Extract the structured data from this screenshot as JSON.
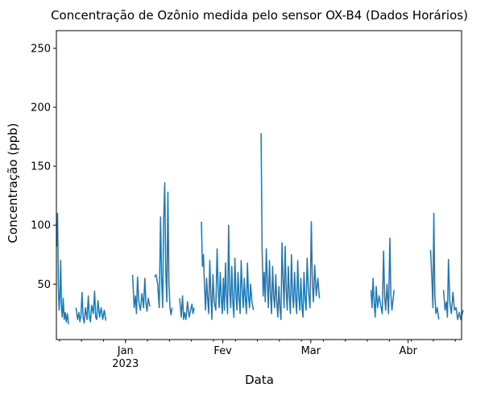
{
  "chart_data": {
    "type": "line",
    "title": "Concentração de Ozônio medida pelo sensor OX-B4 (Dados Horários)",
    "xlabel": "Data",
    "ylabel": "Concentração (ppb)",
    "color": "#1f77b4",
    "xlim": [
      "2022-12-10",
      "2023-04-18"
    ],
    "ylim": [
      3,
      265
    ],
    "y_ticks": [
      50,
      100,
      150,
      200,
      250
    ],
    "x_ticks": [
      {
        "date": "2023-01-01",
        "label": "Jan",
        "sublabel": "2023"
      },
      {
        "date": "2023-02-01",
        "label": "Fev",
        "sublabel": ""
      },
      {
        "date": "2023-03-01",
        "label": "Mar",
        "sublabel": ""
      },
      {
        "date": "2023-04-01",
        "label": "Abr",
        "sublabel": ""
      }
    ],
    "grid": false,
    "legend": "none",
    "series": [
      {
        "segments": [
          [
            [
              "2022-12-10",
              82
            ],
            [
              "2022-12-10",
              110
            ],
            [
              "2022-12-10",
              48
            ],
            [
              "2022-12-10",
              28
            ],
            [
              "2022-12-11",
              40
            ],
            [
              "2022-12-11",
              70
            ],
            [
              "2022-12-11",
              30
            ],
            [
              "2022-12-11",
              22
            ],
            [
              "2022-12-12",
              38
            ],
            [
              "2022-12-12",
              20
            ],
            [
              "2022-12-12",
              26
            ],
            [
              "2022-12-13",
              18
            ],
            [
              "2022-12-13",
              25
            ],
            [
              "2022-12-13",
              16
            ]
          ],
          [
            [
              "2022-12-16",
              30
            ],
            [
              "2022-12-16",
              20
            ],
            [
              "2022-12-17",
              26
            ],
            [
              "2022-12-17",
              18
            ],
            [
              "2022-12-17",
              24
            ],
            [
              "2022-12-18",
              43
            ],
            [
              "2022-12-18",
              22
            ],
            [
              "2022-12-18",
              17
            ],
            [
              "2022-12-19",
              30
            ],
            [
              "2022-12-19",
              20
            ],
            [
              "2022-12-20",
              40
            ],
            [
              "2022-12-20",
              22
            ],
            [
              "2022-12-20",
              18
            ],
            [
              "2022-12-21",
              32
            ],
            [
              "2022-12-21",
              25
            ],
            [
              "2022-12-22",
              44
            ],
            [
              "2022-12-22",
              22
            ],
            [
              "2022-12-22",
              20
            ],
            [
              "2022-12-23",
              36
            ],
            [
              "2022-12-23",
              22
            ],
            [
              "2022-12-24",
              30
            ],
            [
              "2022-12-24",
              20
            ],
            [
              "2022-12-25",
              28
            ],
            [
              "2022-12-25",
              19
            ]
          ],
          [
            [
              "2023-01-03",
              58
            ],
            [
              "2023-01-03",
              30
            ],
            [
              "2023-01-04",
              40
            ],
            [
              "2023-01-04",
              25
            ],
            [
              "2023-01-04",
              56
            ],
            [
              "2023-01-05",
              35
            ],
            [
              "2023-01-05",
              28
            ],
            [
              "2023-01-06",
              42
            ],
            [
              "2023-01-06",
              30
            ],
            [
              "2023-01-07",
              55
            ],
            [
              "2023-01-07",
              34
            ],
            [
              "2023-01-07",
              27
            ],
            [
              "2023-01-08",
              38
            ],
            [
              "2023-01-08",
              31
            ]
          ],
          [
            [
              "2023-01-10",
              56
            ],
            [
              "2023-01-10",
              58
            ],
            [
              "2023-01-11",
              50
            ],
            [
              "2023-01-11",
              30
            ],
            [
              "2023-01-12",
              107
            ],
            [
              "2023-01-12",
              55
            ],
            [
              "2023-01-12",
              30
            ],
            [
              "2023-01-13",
              105
            ],
            [
              "2023-01-13",
              136
            ],
            [
              "2023-01-13",
              60
            ],
            [
              "2023-01-14",
              35
            ],
            [
              "2023-01-14",
              128
            ],
            [
              "2023-01-14",
              50
            ],
            [
              "2023-01-15",
              30
            ],
            [
              "2023-01-15",
              24
            ],
            [
              "2023-01-15",
              30
            ]
          ],
          [
            [
              "2023-01-18",
              38
            ],
            [
              "2023-01-18",
              22
            ],
            [
              "2023-01-19",
              40
            ],
            [
              "2023-01-19",
              20
            ],
            [
              "2023-01-19",
              26
            ],
            [
              "2023-01-20",
              20
            ],
            [
              "2023-01-20",
              35
            ],
            [
              "2023-01-21",
              22
            ],
            [
              "2023-01-21",
              28
            ],
            [
              "2023-01-22",
              33
            ],
            [
              "2023-01-22",
              25
            ],
            [
              "2023-01-22",
              30
            ]
          ],
          [
            [
              "2023-01-25",
              103
            ],
            [
              "2023-01-25",
              65
            ],
            [
              "2023-01-25",
              75
            ],
            [
              "2023-01-26",
              48
            ],
            [
              "2023-01-26",
              28
            ],
            [
              "2023-01-26",
              55
            ],
            [
              "2023-01-27",
              38
            ],
            [
              "2023-01-27",
              25
            ],
            [
              "2023-01-27",
              70
            ],
            [
              "2023-01-28",
              42
            ],
            [
              "2023-01-28",
              20
            ],
            [
              "2023-01-28",
              58
            ],
            [
              "2023-01-29",
              35
            ],
            [
              "2023-01-29",
              28
            ],
            [
              "2023-01-30",
              80
            ],
            [
              "2023-01-30",
              45
            ],
            [
              "2023-01-30",
              30
            ],
            [
              "2023-01-31",
              60
            ],
            [
              "2023-01-31",
              38
            ],
            [
              "2023-01-31",
              25
            ],
            [
              "2023-02-01",
              55
            ],
            [
              "2023-02-01",
              28
            ],
            [
              "2023-02-01",
              68
            ],
            [
              "2023-02-02",
              40
            ],
            [
              "2023-02-02",
              25
            ],
            [
              "2023-02-02",
              100
            ],
            [
              "2023-02-03",
              45
            ],
            [
              "2023-02-03",
              30
            ],
            [
              "2023-02-03",
              65
            ],
            [
              "2023-02-04",
              35
            ],
            [
              "2023-02-04",
              22
            ],
            [
              "2023-02-04",
              72
            ],
            [
              "2023-02-05",
              42
            ],
            [
              "2023-02-05",
              28
            ],
            [
              "2023-02-05",
              60
            ],
            [
              "2023-02-06",
              38
            ],
            [
              "2023-02-06",
              25
            ],
            [
              "2023-02-06",
              70
            ],
            [
              "2023-02-07",
              45
            ],
            [
              "2023-02-07",
              30
            ],
            [
              "2023-02-07",
              55
            ],
            [
              "2023-02-08",
              38
            ],
            [
              "2023-02-08",
              25
            ],
            [
              "2023-02-08",
              68
            ],
            [
              "2023-02-09",
              40
            ],
            [
              "2023-02-09",
              30
            ],
            [
              "2023-02-09",
              50
            ],
            [
              "2023-02-10",
              35
            ],
            [
              "2023-02-10",
              28
            ]
          ],
          [
            [
              "2023-02-13",
              178
            ],
            [
              "2023-02-13",
              80
            ],
            [
              "2023-02-13",
              40
            ],
            [
              "2023-02-14",
              60
            ],
            [
              "2023-02-14",
              35
            ],
            [
              "2023-02-14",
              80
            ],
            [
              "2023-02-15",
              50
            ],
            [
              "2023-02-15",
              30
            ],
            [
              "2023-02-15",
              70
            ],
            [
              "2023-02-16",
              42
            ],
            [
              "2023-02-16",
              25
            ],
            [
              "2023-02-16",
              65
            ],
            [
              "2023-02-17",
              40
            ],
            [
              "2023-02-17",
              30
            ],
            [
              "2023-02-17",
              58
            ],
            [
              "2023-02-18",
              35
            ],
            [
              "2023-02-18",
              22
            ],
            [
              "2023-02-18",
              48
            ],
            [
              "2023-02-19",
              30
            ],
            [
              "2023-02-19",
              20
            ],
            [
              "2023-02-19",
              85
            ],
            [
              "2023-02-20",
              55
            ],
            [
              "2023-02-20",
              30
            ],
            [
              "2023-02-20",
              82
            ],
            [
              "2023-02-21",
              45
            ],
            [
              "2023-02-21",
              28
            ],
            [
              "2023-02-21",
              65
            ],
            [
              "2023-02-22",
              40
            ],
            [
              "2023-02-22",
              25
            ],
            [
              "2023-02-22",
              75
            ],
            [
              "2023-02-23",
              42
            ],
            [
              "2023-02-23",
              30
            ],
            [
              "2023-02-23",
              60
            ],
            [
              "2023-02-24",
              38
            ],
            [
              "2023-02-24",
              25
            ],
            [
              "2023-02-24",
              70
            ],
            [
              "2023-02-25",
              40
            ],
            [
              "2023-02-25",
              28
            ],
            [
              "2023-02-25",
              55
            ],
            [
              "2023-02-26",
              32
            ],
            [
              "2023-02-26",
              22
            ],
            [
              "2023-02-26",
              60
            ],
            [
              "2023-02-27",
              38
            ],
            [
              "2023-02-27",
              28
            ],
            [
              "2023-02-27",
              72
            ],
            [
              "2023-02-28",
              45
            ],
            [
              "2023-02-28",
              30
            ],
            [
              "2023-03-01",
              103
            ],
            [
              "2023-03-01",
              50
            ],
            [
              "2023-03-01",
              35
            ],
            [
              "2023-03-02",
              66
            ],
            [
              "2023-03-02",
              40
            ],
            [
              "2023-03-03",
              55
            ],
            [
              "2023-03-03",
              38
            ]
          ],
          [
            [
              "2023-03-20",
              45
            ],
            [
              "2023-03-20",
              30
            ],
            [
              "2023-03-20",
              55
            ],
            [
              "2023-03-21",
              35
            ],
            [
              "2023-03-21",
              22
            ],
            [
              "2023-03-21",
              48
            ],
            [
              "2023-03-22",
              30
            ],
            [
              "2023-03-22",
              40
            ],
            [
              "2023-03-23",
              32
            ],
            [
              "2023-03-23",
              25
            ],
            [
              "2023-03-24",
              78
            ],
            [
              "2023-03-24",
              40
            ],
            [
              "2023-03-24",
              28
            ],
            [
              "2023-03-25",
              50
            ],
            [
              "2023-03-25",
              25
            ],
            [
              "2023-03-26",
              89
            ],
            [
              "2023-03-26",
              40
            ],
            [
              "2023-03-26",
              28
            ],
            [
              "2023-03-27",
              45
            ]
          ],
          [
            [
              "2023-04-08",
              79
            ],
            [
              "2023-04-08",
              65
            ],
            [
              "2023-04-08",
              50
            ],
            [
              "2023-04-08",
              30
            ],
            [
              "2023-04-09",
              110
            ],
            [
              "2023-04-09",
              40
            ],
            [
              "2023-04-09",
              25
            ],
            [
              "2023-04-10",
              30
            ],
            [
              "2023-04-10",
              20
            ]
          ],
          [
            [
              "2023-04-12",
              45
            ],
            [
              "2023-04-12",
              28
            ],
            [
              "2023-04-13",
              35
            ],
            [
              "2023-04-13",
              22
            ],
            [
              "2023-04-13",
              71
            ],
            [
              "2023-04-14",
              35
            ],
            [
              "2023-04-14",
              25
            ],
            [
              "2023-04-15",
              43
            ],
            [
              "2023-04-15",
              28
            ],
            [
              "2023-04-16",
              30
            ],
            [
              "2023-04-16",
              20
            ],
            [
              "2023-04-17",
              26
            ],
            [
              "2023-04-17",
              20
            ],
            [
              "2023-04-18",
              28
            ]
          ]
        ]
      }
    ]
  }
}
